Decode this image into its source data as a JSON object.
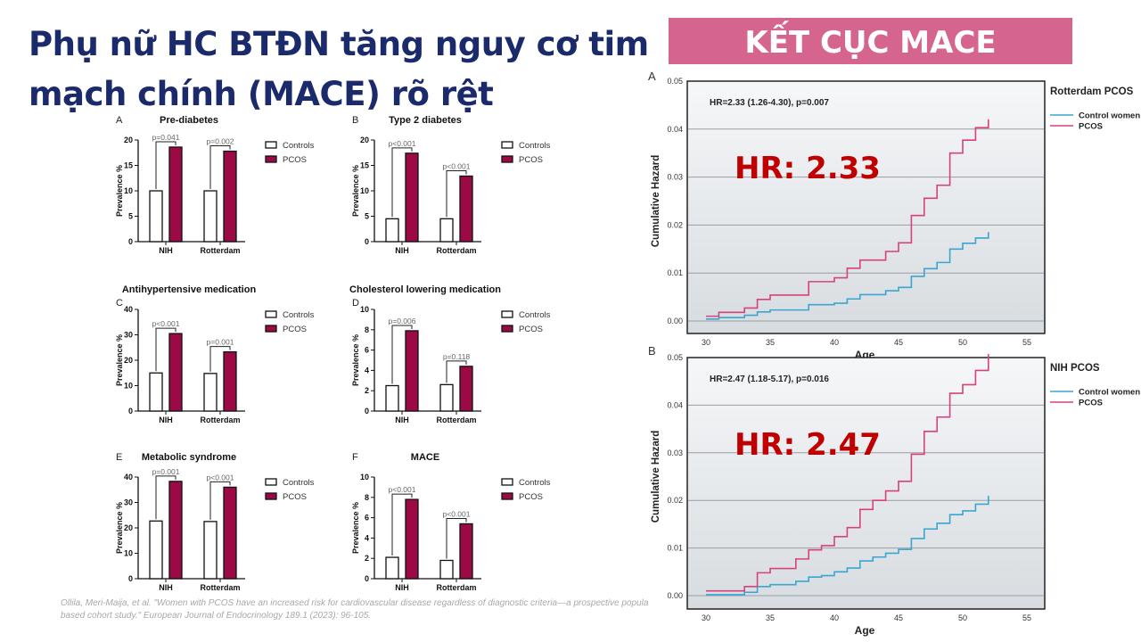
{
  "slide": {
    "title_line1": "Phụ nữ HC BTĐN tăng nguy cơ tim",
    "title_line2": "mạch chính (MACE) rõ rệt",
    "banner": "KẾT CỤC MACE",
    "citation_line1": "Ollila, Meri-Maija, et al. \"Women with PCOS have an increased risk for cardiovascular disease regardless of diagnostic criteria—a prospective populati",
    "citation_line2": "based cohort study.\" European Journal of Endocrinology 189.1 (2023): 96-105.",
    "colors": {
      "title": "#1b2a6b",
      "banner": "#d5648f",
      "pcos_bar": "#9b0a45",
      "pcos_line": "#d6417f",
      "control_line": "#3aa6cf",
      "hr_text": "#c00000"
    }
  },
  "chart_data": [
    {
      "type": "bar",
      "panel": "A",
      "title": "Pre-diabetes",
      "ylabel": "Prevalence %",
      "ylim": [
        0,
        20
      ],
      "yticks": [
        0,
        5,
        10,
        15,
        20
      ],
      "categories": [
        "NIH",
        "Rotterdam"
      ],
      "series": [
        {
          "name": "Controls",
          "values": [
            10,
            10
          ]
        },
        {
          "name": "PCOS",
          "values": [
            18.6,
            17.8
          ]
        }
      ],
      "pvalues": [
        "p=0.041",
        "p=0.002"
      ],
      "legend": "right"
    },
    {
      "type": "bar",
      "panel": "B",
      "title": "Type 2 diabetes",
      "ylabel": "Prevalence %",
      "ylim": [
        0,
        20
      ],
      "yticks": [
        0,
        5,
        10,
        15,
        20
      ],
      "categories": [
        "NIH",
        "Rotterdam"
      ],
      "series": [
        {
          "name": "Controls",
          "values": [
            4.5,
            4.5
          ]
        },
        {
          "name": "PCOS",
          "values": [
            17.4,
            12.9
          ]
        }
      ],
      "pvalues": [
        "p<0.001",
        "p<0.001"
      ],
      "legend": "right"
    },
    {
      "type": "bar",
      "panel": "C",
      "title": "Antihypertensive medication",
      "ylabel": "Prevalence %",
      "ylim": [
        0,
        40
      ],
      "yticks": [
        0,
        10,
        20,
        30,
        40
      ],
      "categories": [
        "NIH",
        "Rotterdam"
      ],
      "series": [
        {
          "name": "Controls",
          "values": [
            15,
            14.8
          ]
        },
        {
          "name": "PCOS",
          "values": [
            30.5,
            23.3
          ]
        }
      ],
      "pvalues": [
        "p<0.001",
        "p=0.001"
      ],
      "legend": "right"
    },
    {
      "type": "bar",
      "panel": "D",
      "title": "Cholesterol lowering medication",
      "ylabel": "Prevalence %",
      "ylim": [
        0,
        10
      ],
      "yticks": [
        0,
        2,
        4,
        6,
        8,
        10
      ],
      "categories": [
        "NIH",
        "Rotterdam"
      ],
      "series": [
        {
          "name": "Controls",
          "values": [
            2.5,
            2.6
          ]
        },
        {
          "name": "PCOS",
          "values": [
            7.9,
            4.4
          ]
        }
      ],
      "pvalues": [
        "p=0.006",
        "p=0.118"
      ],
      "legend": "right"
    },
    {
      "type": "bar",
      "panel": "E",
      "title": "Metabolic syndrome",
      "ylabel": "Prevalence %",
      "ylim": [
        0,
        40
      ],
      "yticks": [
        0,
        10,
        20,
        30,
        40
      ],
      "categories": [
        "NIH",
        "Rotterdam"
      ],
      "series": [
        {
          "name": "Controls",
          "values": [
            22.7,
            22.5
          ]
        },
        {
          "name": "PCOS",
          "values": [
            38.3,
            36
          ]
        }
      ],
      "pvalues": [
        "p=0.001",
        "p<0.001"
      ],
      "legend": "right"
    },
    {
      "type": "bar",
      "panel": "F",
      "title": "MACE",
      "ylabel": "Prevalence %",
      "ylim": [
        0,
        10
      ],
      "yticks": [
        0,
        2,
        4,
        6,
        8,
        10
      ],
      "categories": [
        "NIH",
        "Rotterdam"
      ],
      "series": [
        {
          "name": "Controls",
          "values": [
            2.1,
            1.8
          ]
        },
        {
          "name": "PCOS",
          "values": [
            7.8,
            5.4
          ]
        }
      ],
      "pvalues": [
        "p<0.001",
        "p<0.001"
      ],
      "legend": "right"
    },
    {
      "type": "line",
      "step": true,
      "panel": "A",
      "legend_title": "Rotterdam PCOS",
      "annotation": "HR=2.33 (1.26-4.30), p=0.007",
      "highlight": "HR: 2.33",
      "xlabel": "Age",
      "ylabel": "Cumulative Hazard",
      "xlim": [
        30,
        55
      ],
      "xticks": [
        30,
        35,
        40,
        45,
        50,
        55
      ],
      "ylim": [
        0,
        0.05
      ],
      "yticks": [
        "0.00",
        "0.01",
        "0.02",
        "0.03",
        "0.04",
        "0.05"
      ],
      "x": [
        30,
        31,
        33,
        34,
        35,
        38,
        40,
        41,
        42,
        44,
        45,
        46,
        47,
        48,
        49,
        50,
        51,
        52
      ],
      "series": [
        {
          "name": "Control women",
          "values": [
            0.0004,
            0.0007,
            0.0012,
            0.0019,
            0.0023,
            0.0034,
            0.0037,
            0.0046,
            0.0055,
            0.0063,
            0.007,
            0.0093,
            0.0109,
            0.0122,
            0.015,
            0.0162,
            0.0173,
            0.0178
          ]
        },
        {
          "name": "PCOS",
          "values": [
            0.001,
            0.0018,
            0.0027,
            0.0045,
            0.0054,
            0.0082,
            0.009,
            0.011,
            0.0127,
            0.0145,
            0.0163,
            0.022,
            0.0256,
            0.0283,
            0.035,
            0.0377,
            0.0403,
            0.0413
          ]
        }
      ]
    },
    {
      "type": "line",
      "step": true,
      "panel": "B",
      "legend_title": "NIH PCOS",
      "annotation": "HR=2.47 (1.18-5.17), p=0.016",
      "highlight": "HR: 2.47",
      "xlabel": "Age",
      "ylabel": "Cumulative Hazard",
      "xlim": [
        30,
        55
      ],
      "xticks": [
        30,
        35,
        40,
        45,
        50,
        55
      ],
      "ylim": [
        0,
        0.05
      ],
      "yticks": [
        "0.00",
        "0.01",
        "0.02",
        "0.03",
        "0.04",
        "0.05"
      ],
      "x": [
        30,
        33,
        34,
        35,
        37,
        38,
        39,
        40,
        41,
        42,
        43,
        44,
        45,
        46,
        47,
        48,
        49,
        50,
        51,
        52
      ],
      "series": [
        {
          "name": "Control women",
          "values": [
            0.0002,
            0.0007,
            0.0019,
            0.0023,
            0.003,
            0.0039,
            0.0042,
            0.005,
            0.0058,
            0.0073,
            0.0081,
            0.0089,
            0.0097,
            0.012,
            0.014,
            0.0152,
            0.017,
            0.0178,
            0.0192,
            0.0202
          ]
        },
        {
          "name": "PCOS",
          "values": [
            0.001,
            0.0019,
            0.0048,
            0.0057,
            0.0077,
            0.0096,
            0.0105,
            0.0124,
            0.0143,
            0.0181,
            0.02,
            0.022,
            0.024,
            0.0297,
            0.0345,
            0.0375,
            0.0425,
            0.0443,
            0.0473,
            0.05
          ]
        }
      ]
    }
  ]
}
